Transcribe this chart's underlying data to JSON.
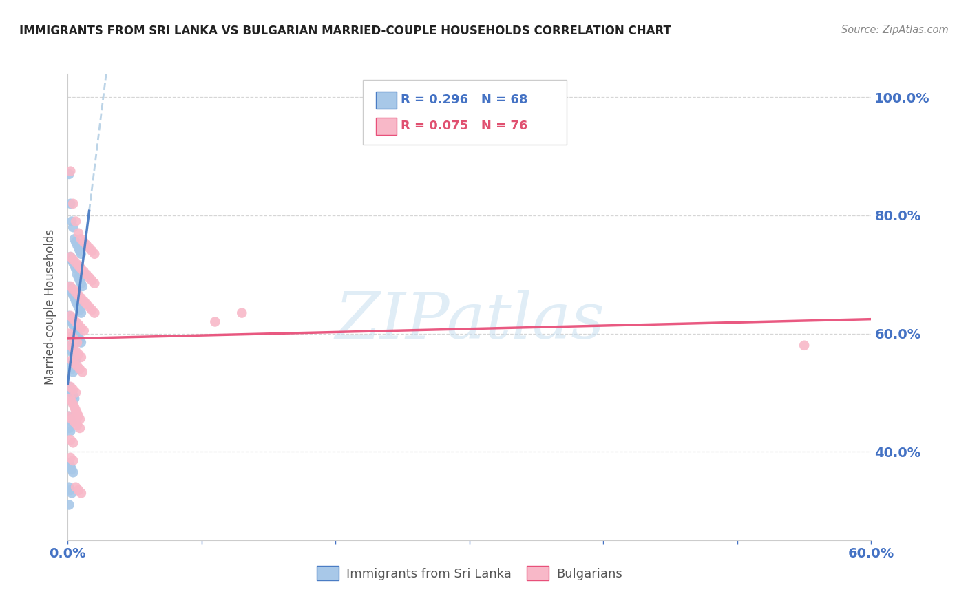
{
  "title": "IMMIGRANTS FROM SRI LANKA VS BULGARIAN MARRIED-COUPLE HOUSEHOLDS CORRELATION CHART",
  "source": "Source: ZipAtlas.com",
  "ylabel": "Married-couple Households",
  "watermark": "ZIPatlas",
  "xlim": [
    0.0,
    0.6
  ],
  "ylim": [
    0.25,
    1.04
  ],
  "yticks": [
    0.4,
    0.6,
    0.8,
    1.0
  ],
  "ytick_labels": [
    "40.0%",
    "60.0%",
    "80.0%",
    "100.0%"
  ],
  "sri_lanka_R": 0.296,
  "sri_lanka_N": 68,
  "bulgarian_R": 0.075,
  "bulgarian_N": 76,
  "sri_lanka_color": "#a8c8e8",
  "bulgarian_color": "#f8b8c8",
  "sri_lanka_line_color": "#4a7cc4",
  "bulgarian_line_color": "#e8507a",
  "sri_lanka_scatter_x": [
    0.001,
    0.002,
    0.003,
    0.004,
    0.005,
    0.006,
    0.007,
    0.008,
    0.009,
    0.01,
    0.002,
    0.003,
    0.004,
    0.005,
    0.006,
    0.007,
    0.008,
    0.009,
    0.01,
    0.011,
    0.001,
    0.002,
    0.003,
    0.004,
    0.005,
    0.006,
    0.007,
    0.008,
    0.009,
    0.01,
    0.001,
    0.002,
    0.003,
    0.004,
    0.005,
    0.006,
    0.007,
    0.008,
    0.009,
    0.01,
    0.001,
    0.002,
    0.003,
    0.004,
    0.005,
    0.006,
    0.001,
    0.002,
    0.003,
    0.004,
    0.001,
    0.002,
    0.003,
    0.004,
    0.005,
    0.001,
    0.002,
    0.003,
    0.001,
    0.002,
    0.001,
    0.002,
    0.003,
    0.004,
    0.001,
    0.002,
    0.003,
    0.001
  ],
  "sri_lanka_scatter_y": [
    0.87,
    0.82,
    0.79,
    0.78,
    0.76,
    0.755,
    0.75,
    0.745,
    0.74,
    0.735,
    0.73,
    0.725,
    0.72,
    0.715,
    0.71,
    0.7,
    0.695,
    0.69,
    0.685,
    0.68,
    0.68,
    0.675,
    0.67,
    0.665,
    0.66,
    0.655,
    0.65,
    0.645,
    0.64,
    0.635,
    0.63,
    0.625,
    0.62,
    0.615,
    0.61,
    0.605,
    0.6,
    0.595,
    0.59,
    0.585,
    0.58,
    0.575,
    0.57,
    0.565,
    0.56,
    0.555,
    0.55,
    0.545,
    0.54,
    0.535,
    0.51,
    0.505,
    0.5,
    0.495,
    0.49,
    0.46,
    0.455,
    0.45,
    0.44,
    0.435,
    0.38,
    0.375,
    0.37,
    0.365,
    0.34,
    0.335,
    0.33,
    0.31
  ],
  "bulgarian_scatter_x": [
    0.002,
    0.004,
    0.006,
    0.008,
    0.01,
    0.012,
    0.014,
    0.016,
    0.018,
    0.02,
    0.002,
    0.004,
    0.006,
    0.008,
    0.01,
    0.012,
    0.014,
    0.016,
    0.018,
    0.02,
    0.002,
    0.004,
    0.006,
    0.008,
    0.01,
    0.012,
    0.014,
    0.016,
    0.018,
    0.02,
    0.002,
    0.004,
    0.006,
    0.008,
    0.01,
    0.012,
    0.001,
    0.003,
    0.005,
    0.007,
    0.002,
    0.004,
    0.006,
    0.008,
    0.01,
    0.003,
    0.005,
    0.007,
    0.009,
    0.011,
    0.002,
    0.004,
    0.006,
    0.001,
    0.003,
    0.005,
    0.007,
    0.009,
    0.002,
    0.004,
    0.11,
    0.13,
    0.55,
    0.002,
    0.004,
    0.006,
    0.008,
    0.01,
    0.002,
    0.003,
    0.004,
    0.005,
    0.006,
    0.007,
    0.008,
    0.009
  ],
  "bulgarian_scatter_y": [
    0.875,
    0.82,
    0.79,
    0.77,
    0.76,
    0.755,
    0.75,
    0.745,
    0.74,
    0.735,
    0.73,
    0.725,
    0.72,
    0.715,
    0.71,
    0.705,
    0.7,
    0.695,
    0.69,
    0.685,
    0.68,
    0.675,
    0.67,
    0.665,
    0.66,
    0.655,
    0.65,
    0.645,
    0.64,
    0.635,
    0.63,
    0.625,
    0.62,
    0.615,
    0.61,
    0.605,
    0.6,
    0.595,
    0.59,
    0.585,
    0.58,
    0.575,
    0.57,
    0.565,
    0.56,
    0.555,
    0.55,
    0.545,
    0.54,
    0.535,
    0.51,
    0.505,
    0.5,
    0.46,
    0.455,
    0.45,
    0.445,
    0.44,
    0.42,
    0.415,
    0.62,
    0.635,
    0.58,
    0.39,
    0.385,
    0.34,
    0.335,
    0.33,
    0.49,
    0.485,
    0.48,
    0.475,
    0.47,
    0.465,
    0.46,
    0.455
  ],
  "title_color": "#222222",
  "source_color": "#888888",
  "axis_label_color": "#555555",
  "tick_color": "#4472c4",
  "grid_color": "#cccccc",
  "background_color": "#ffffff",
  "legend_text_color_sri": "#4472c4",
  "legend_text_color_bul": "#e05070",
  "watermark_color": "#c8dff0"
}
